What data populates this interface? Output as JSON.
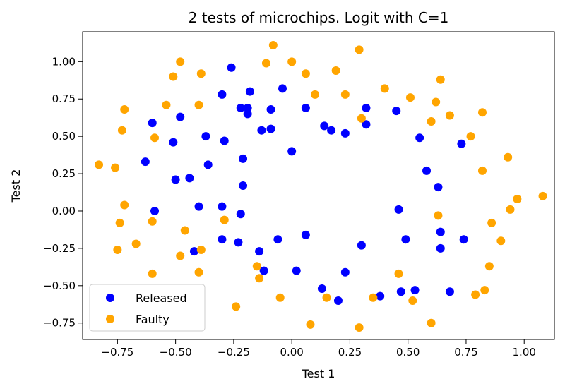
{
  "chart_data": {
    "type": "scatter",
    "title": "2 tests of microchips. Logit with C=1",
    "xlabel": "Test 1",
    "ylabel": "Test 2",
    "xlim": [
      -0.9,
      1.13
    ],
    "ylim": [
      -0.86,
      1.2
    ],
    "xticks": [
      -0.75,
      -0.5,
      -0.25,
      0.0,
      0.25,
      0.5,
      0.75,
      1.0
    ],
    "xtick_labels": [
      "−0.75",
      "−0.50",
      "−0.25",
      "0.00",
      "0.25",
      "0.50",
      "0.75",
      "1.00"
    ],
    "yticks": [
      -0.75,
      -0.5,
      -0.25,
      0.0,
      0.25,
      0.5,
      0.75,
      1.0
    ],
    "ytick_labels": [
      "−0.75",
      "−0.50",
      "−0.25",
      "0.00",
      "0.25",
      "0.50",
      "0.75",
      "1.00"
    ],
    "grid": false,
    "legend_position": "lower-left",
    "series": [
      {
        "name": "Released",
        "color": "#0000ff",
        "points": [
          [
            -0.26,
            0.96
          ],
          [
            -0.3,
            0.78
          ],
          [
            -0.18,
            0.8
          ],
          [
            -0.04,
            0.82
          ],
          [
            -0.22,
            0.69
          ],
          [
            -0.19,
            0.69
          ],
          [
            -0.09,
            0.68
          ],
          [
            -0.19,
            0.65
          ],
          [
            -0.13,
            0.54
          ],
          [
            -0.09,
            0.55
          ],
          [
            0.06,
            0.69
          ],
          [
            0.14,
            0.57
          ],
          [
            0.17,
            0.54
          ],
          [
            0.23,
            0.52
          ],
          [
            0.32,
            0.58
          ],
          [
            0.32,
            0.69
          ],
          [
            0.45,
            0.67
          ],
          [
            0.55,
            0.49
          ],
          [
            0.73,
            0.45
          ],
          [
            -0.6,
            0.59
          ],
          [
            -0.48,
            0.63
          ],
          [
            -0.51,
            0.46
          ],
          [
            -0.37,
            0.5
          ],
          [
            -0.29,
            0.47
          ],
          [
            -0.21,
            0.35
          ],
          [
            -0.36,
            0.31
          ],
          [
            -0.63,
            0.33
          ],
          [
            -0.5,
            0.21
          ],
          [
            -0.44,
            0.22
          ],
          [
            -0.21,
            0.17
          ],
          [
            -0.59,
            0.0
          ],
          [
            -0.4,
            0.03
          ],
          [
            -0.3,
            0.03
          ],
          [
            -0.22,
            -0.02
          ],
          [
            0.0,
            0.4
          ],
          [
            0.58,
            0.27
          ],
          [
            0.63,
            0.16
          ],
          [
            0.46,
            0.01
          ],
          [
            0.64,
            -0.14
          ],
          [
            0.49,
            -0.19
          ],
          [
            0.64,
            -0.25
          ],
          [
            0.74,
            -0.19
          ],
          [
            -0.3,
            -0.19
          ],
          [
            -0.23,
            -0.21
          ],
          [
            -0.14,
            -0.27
          ],
          [
            -0.06,
            -0.19
          ],
          [
            0.06,
            -0.16
          ],
          [
            0.3,
            -0.23
          ],
          [
            -0.42,
            -0.27
          ],
          [
            -0.12,
            -0.4
          ],
          [
            0.02,
            -0.4
          ],
          [
            0.23,
            -0.41
          ],
          [
            0.13,
            -0.52
          ],
          [
            0.2,
            -0.6
          ],
          [
            0.38,
            -0.57
          ],
          [
            0.47,
            -0.54
          ],
          [
            0.53,
            -0.53
          ],
          [
            0.68,
            -0.54
          ]
        ]
      },
      {
        "name": "Faulty",
        "color": "#ffa500",
        "points": [
          [
            -0.48,
            1.0
          ],
          [
            -0.51,
            0.9
          ],
          [
            -0.39,
            0.92
          ],
          [
            -0.08,
            1.11
          ],
          [
            -0.11,
            0.99
          ],
          [
            0.0,
            1.0
          ],
          [
            0.06,
            0.92
          ],
          [
            0.19,
            0.94
          ],
          [
            0.29,
            1.08
          ],
          [
            0.1,
            0.78
          ],
          [
            0.23,
            0.78
          ],
          [
            0.4,
            0.82
          ],
          [
            0.51,
            0.76
          ],
          [
            0.64,
            0.88
          ],
          [
            0.62,
            0.73
          ],
          [
            0.6,
            0.6
          ],
          [
            0.68,
            0.64
          ],
          [
            0.82,
            0.66
          ],
          [
            0.77,
            0.5
          ],
          [
            0.3,
            0.62
          ],
          [
            -0.72,
            0.68
          ],
          [
            -0.73,
            0.54
          ],
          [
            -0.54,
            0.71
          ],
          [
            -0.4,
            0.71
          ],
          [
            -0.59,
            0.49
          ],
          [
            -0.83,
            0.31
          ],
          [
            -0.76,
            0.29
          ],
          [
            -0.72,
            0.04
          ],
          [
            -0.74,
            -0.08
          ],
          [
            -0.6,
            -0.07
          ],
          [
            -0.46,
            -0.13
          ],
          [
            -0.67,
            -0.22
          ],
          [
            -0.75,
            -0.26
          ],
          [
            -0.48,
            -0.3
          ],
          [
            -0.39,
            -0.26
          ],
          [
            -0.6,
            -0.42
          ],
          [
            -0.4,
            -0.41
          ],
          [
            -0.29,
            -0.06
          ],
          [
            0.82,
            0.27
          ],
          [
            0.93,
            0.36
          ],
          [
            0.97,
            0.08
          ],
          [
            1.08,
            0.1
          ],
          [
            0.94,
            0.01
          ],
          [
            0.63,
            -0.03
          ],
          [
            0.86,
            -0.08
          ],
          [
            0.9,
            -0.2
          ],
          [
            0.85,
            -0.37
          ],
          [
            0.83,
            -0.53
          ],
          [
            0.79,
            -0.56
          ],
          [
            -0.15,
            -0.37
          ],
          [
            -0.14,
            -0.45
          ],
          [
            -0.05,
            -0.58
          ],
          [
            -0.24,
            -0.64
          ],
          [
            0.15,
            -0.58
          ],
          [
            0.35,
            -0.58
          ],
          [
            0.52,
            -0.6
          ],
          [
            0.46,
            -0.42
          ],
          [
            0.08,
            -0.76
          ],
          [
            0.29,
            -0.78
          ],
          [
            0.6,
            -0.75
          ]
        ]
      }
    ]
  }
}
